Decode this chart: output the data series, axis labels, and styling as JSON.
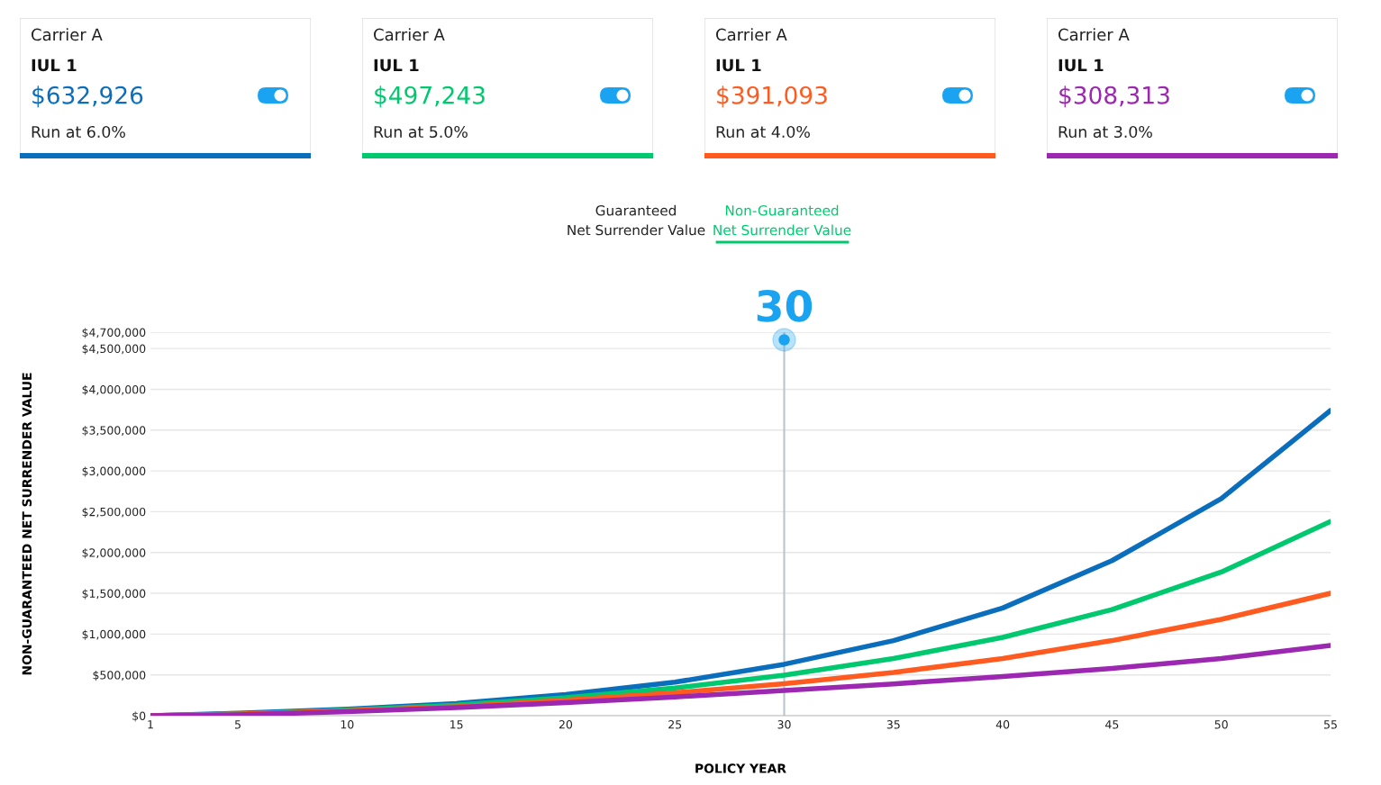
{
  "chart_data": [
    {
      "type": "other",
      "title": "Carrier A",
      "subtitle": "IUL 1",
      "annotations": [
        "$632,926",
        "Run at 6.0%"
      ],
      "color": "#0a6ebd"
    },
    {
      "type": "other",
      "title": "Carrier A",
      "subtitle": "IUL 1",
      "annotations": [
        "$497,243",
        "Run at 5.0%"
      ],
      "color": "#00c86e"
    },
    {
      "type": "other",
      "title": "Carrier A",
      "subtitle": "IUL 1",
      "annotations": [
        "$391,093",
        "Run at 4.0%"
      ],
      "color": "#ff5a1f"
    },
    {
      "type": "other",
      "title": "Carrier A",
      "subtitle": "IUL 1",
      "annotations": [
        "$308,313",
        "Run at 3.0%"
      ],
      "color": "#9c27b0"
    },
    {
      "type": "line",
      "xlabel": "POLICY YEAR",
      "ylabel": "NON-GUARANTEED NET SURRENDER VALUE",
      "annotations": [
        "Guaranteed\nNet Surrender Value",
        "Non-Guaranteed\nNet Surrender Value"
      ],
      "x": [
        1,
        5,
        10,
        15,
        20,
        25,
        30,
        35,
        40,
        45,
        50,
        55
      ],
      "series": [
        {
          "color": "#0a6ebd",
          "values": [
            0,
            30000,
            80000,
            150000,
            260000,
            410000,
            630000,
            920000,
            1320000,
            1900000,
            2660000,
            3740000
          ]
        },
        {
          "color": "#00c86e",
          "values": [
            0,
            20000,
            70000,
            130000,
            220000,
            340000,
            497000,
            700000,
            960000,
            1300000,
            1760000,
            2380000
          ]
        },
        {
          "color": "#ff5a1f",
          "values": [
            0,
            20000,
            60000,
            110000,
            190000,
            280000,
            391000,
            530000,
            700000,
            920000,
            1180000,
            1500000
          ]
        },
        {
          "color": "#9c27b0",
          "values": [
            0,
            10000,
            50000,
            100000,
            160000,
            230000,
            308000,
            390000,
            480000,
            580000,
            700000,
            860000
          ]
        }
      ],
      "xlim": [
        1,
        55
      ],
      "xticks": [
        1,
        5,
        10,
        15,
        20,
        25,
        30,
        35,
        40,
        45,
        50,
        55
      ],
      "ylim": [
        0,
        4700000
      ],
      "yticks": [
        {
          "value": 0,
          "label": "$0"
        },
        {
          "value": 500000,
          "label": "$500,000"
        },
        {
          "value": 1000000,
          "label": "$1,000,000"
        },
        {
          "value": 1500000,
          "label": "$1,500,000"
        },
        {
          "value": 2000000,
          "label": "$2,000,000"
        },
        {
          "value": 2500000,
          "label": "$2,500,000"
        },
        {
          "value": 3000000,
          "label": "$3,000,000"
        },
        {
          "value": 3500000,
          "label": "$3,500,000"
        },
        {
          "value": 4000000,
          "label": "$4,000,000"
        },
        {
          "value": 4500000,
          "label": "$4,500,000"
        },
        {
          "value": 4700000,
          "label": "$4,700,000"
        }
      ],
      "ref_lines": [
        {
          "axis": "x",
          "value": 30,
          "label": "30",
          "color": "#b8c4d0"
        }
      ],
      "grid": "y",
      "legend": false,
      "marker": "none",
      "line_style": "solid"
    }
  ]
}
